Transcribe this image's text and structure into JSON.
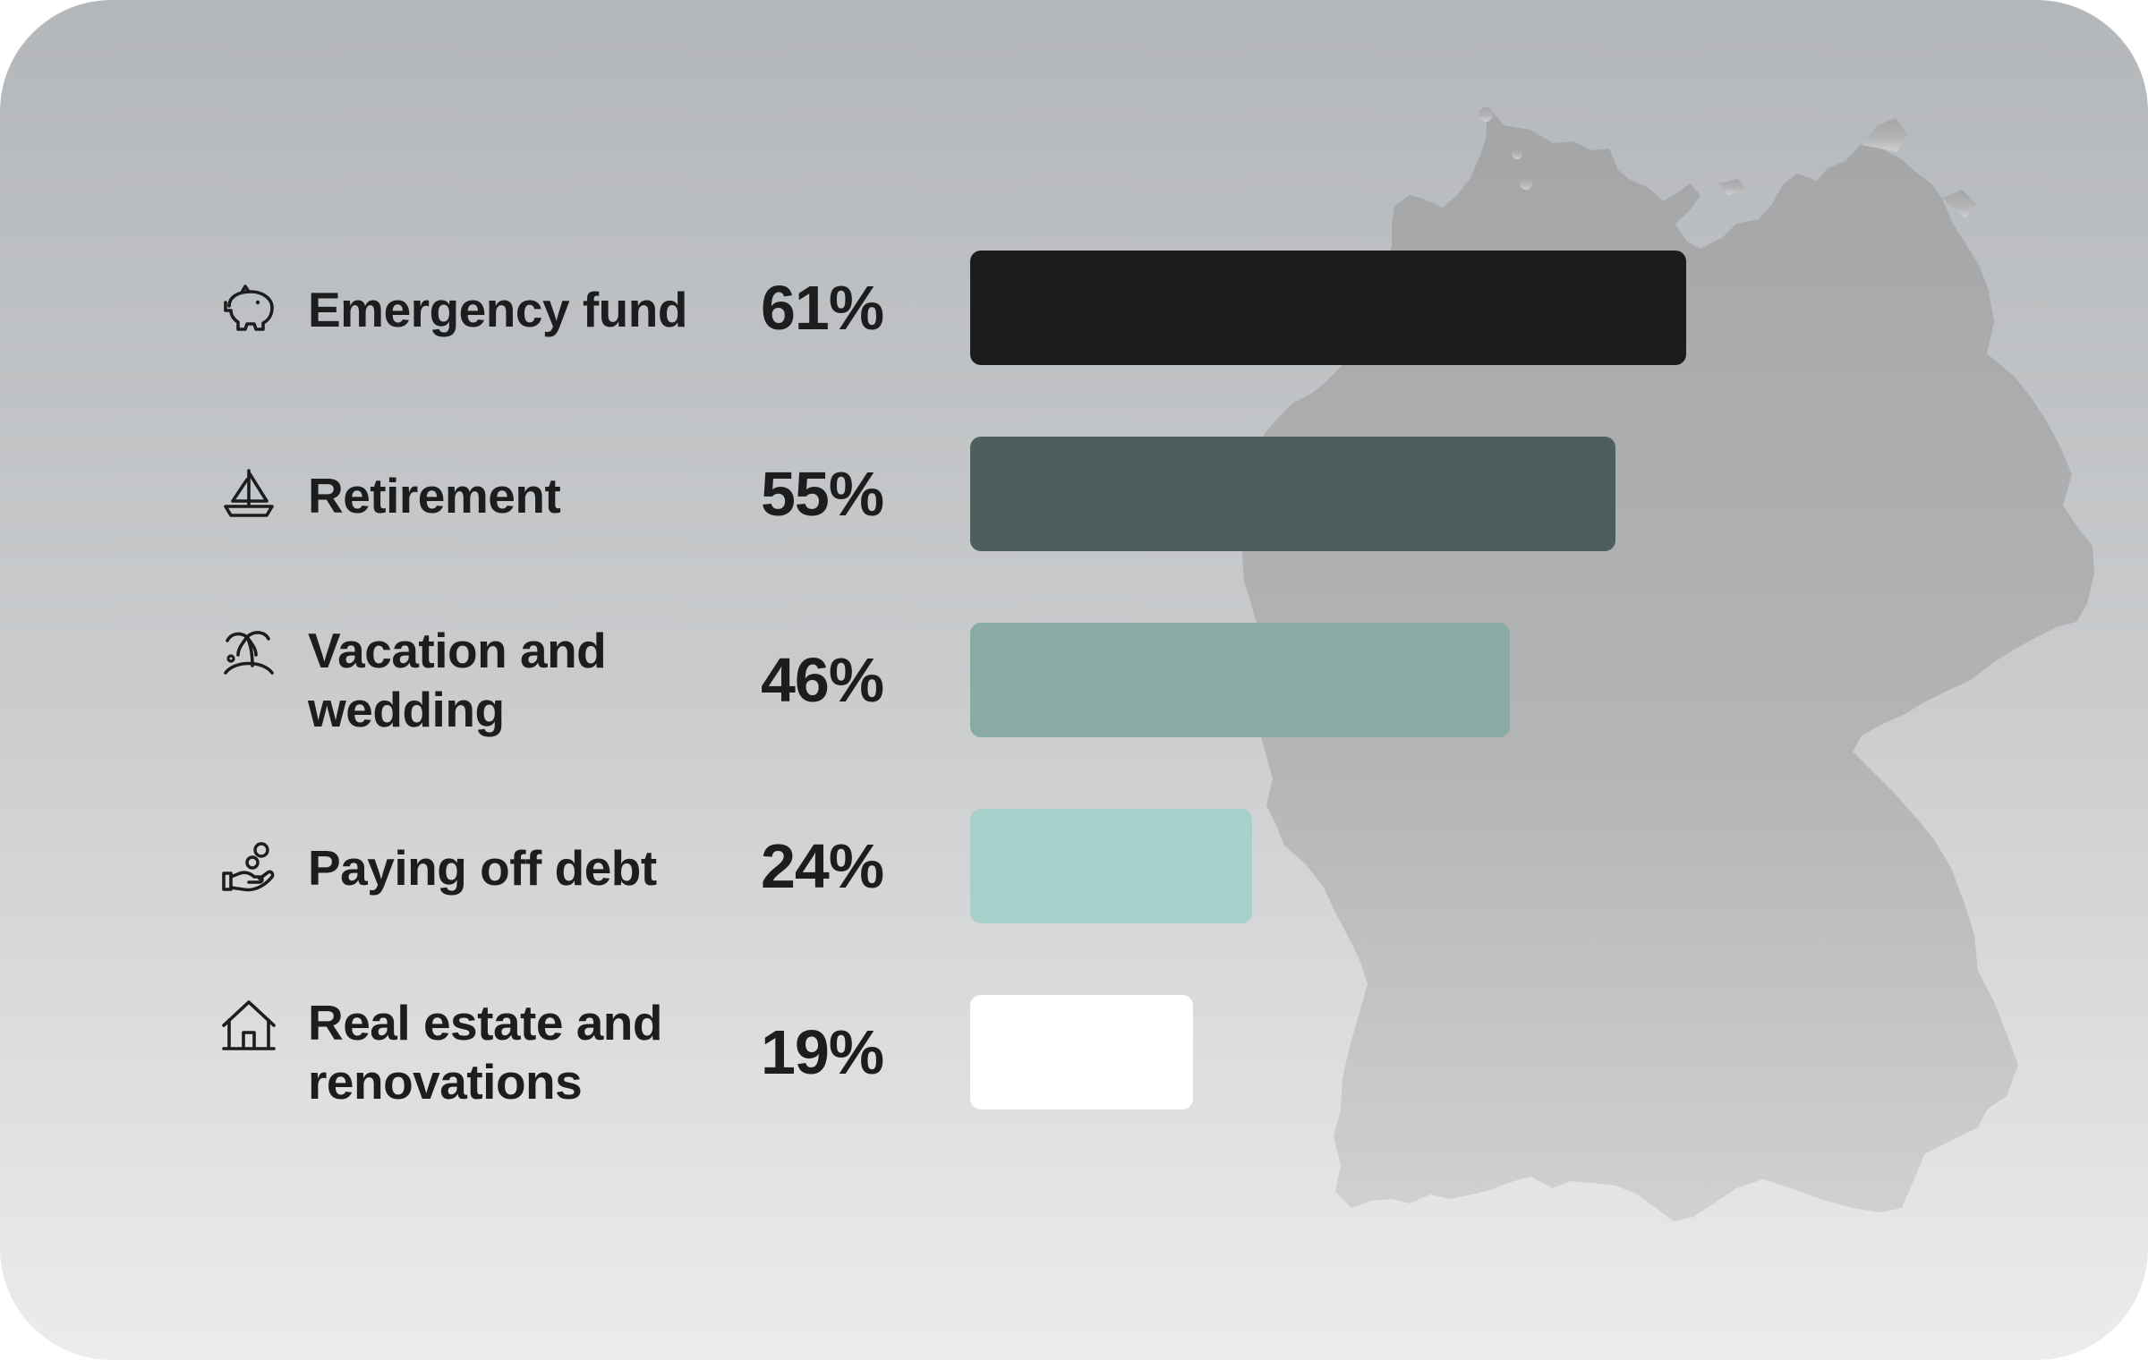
{
  "chart_data": {
    "type": "bar",
    "orientation": "horizontal",
    "categories": [
      "Emergency fund",
      "Retirement",
      "Vacation and wedding",
      "Paying off debt",
      "Real estate and renovations"
    ],
    "values": [
      61,
      55,
      46,
      24,
      19
    ],
    "value_labels": [
      "61%",
      "55%",
      "46%",
      "24%",
      "19%"
    ],
    "bar_colors": [
      "#1b1c1e",
      "#4e5e5d",
      "#8aaaa4",
      "#a7d0cb",
      "#ffffff"
    ],
    "icons": [
      "piggy-bank-icon",
      "sailboat-icon",
      "palm-island-icon",
      "hand-coins-icon",
      "house-icon"
    ],
    "xlim": [
      0,
      61
    ],
    "grid": false,
    "legend": "none"
  }
}
